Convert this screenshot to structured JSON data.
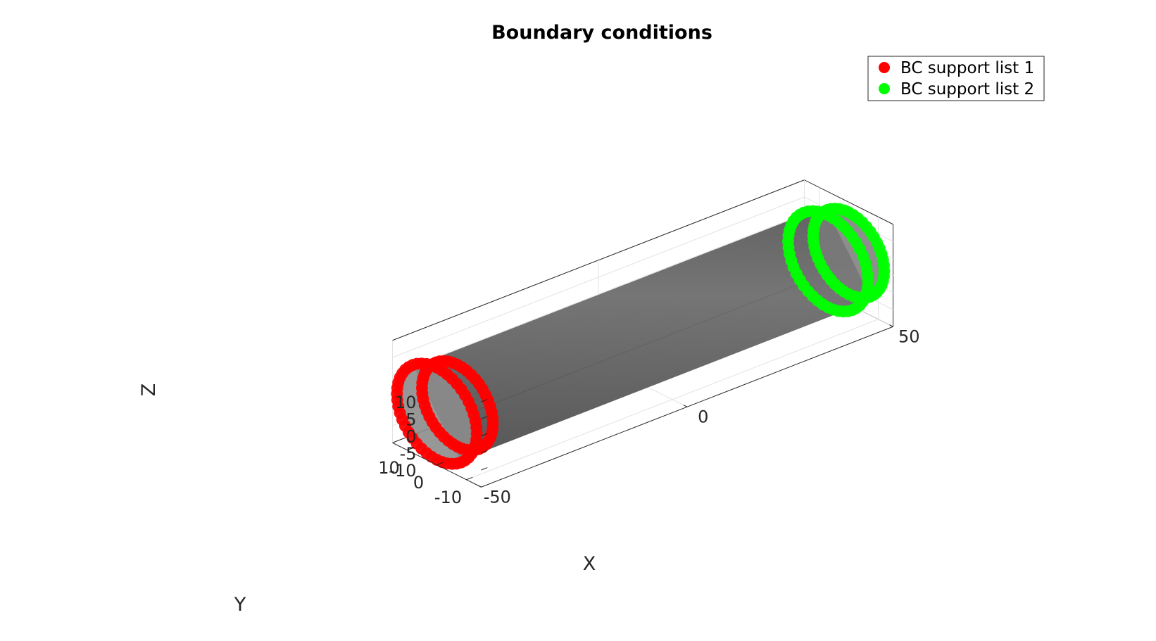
{
  "chart_data": {
    "type": "scatter",
    "subtype": "3d-surface-with-markers",
    "title": "Boundary conditions",
    "xlabel": "X",
    "ylabel": "Y",
    "zlabel": "Z",
    "xlim": [
      -50,
      50
    ],
    "ylim": [
      -15,
      15
    ],
    "zlim": [
      -15,
      15
    ],
    "xticks": [
      {
        "value": -50,
        "label": "-50"
      },
      {
        "value": 0,
        "label": "0"
      },
      {
        "value": 50,
        "label": "50"
      }
    ],
    "yticks": [
      {
        "value": -10,
        "label": "-10"
      },
      {
        "value": 0,
        "label": "0"
      },
      {
        "value": 10,
        "label": "10"
      }
    ],
    "zticks": [
      {
        "value": -10,
        "label": "-10"
      },
      {
        "value": -5,
        "label": "-5"
      },
      {
        "value": 0,
        "label": "0"
      },
      {
        "value": 5,
        "label": "5"
      },
      {
        "value": 10,
        "label": "10"
      }
    ],
    "grid": true,
    "box": true,
    "legend_position": "top-right",
    "surface": {
      "shape": "cylinder",
      "axis": "x",
      "x_range": [
        -50,
        50
      ],
      "radius": 13,
      "color": "#6e6e6e",
      "transparent": true
    },
    "series": [
      {
        "name": "BC support list 1",
        "color": "#ff0000",
        "x_levels": [
          -50,
          -45
        ],
        "radii": [
          13.5,
          12
        ],
        "points_per_ring": 48
      },
      {
        "name": "BC support list 2",
        "color": "#00ff00",
        "x_levels": [
          45,
          50
        ],
        "radii": [
          13.5,
          12
        ],
        "points_per_ring": 48
      }
    ]
  }
}
